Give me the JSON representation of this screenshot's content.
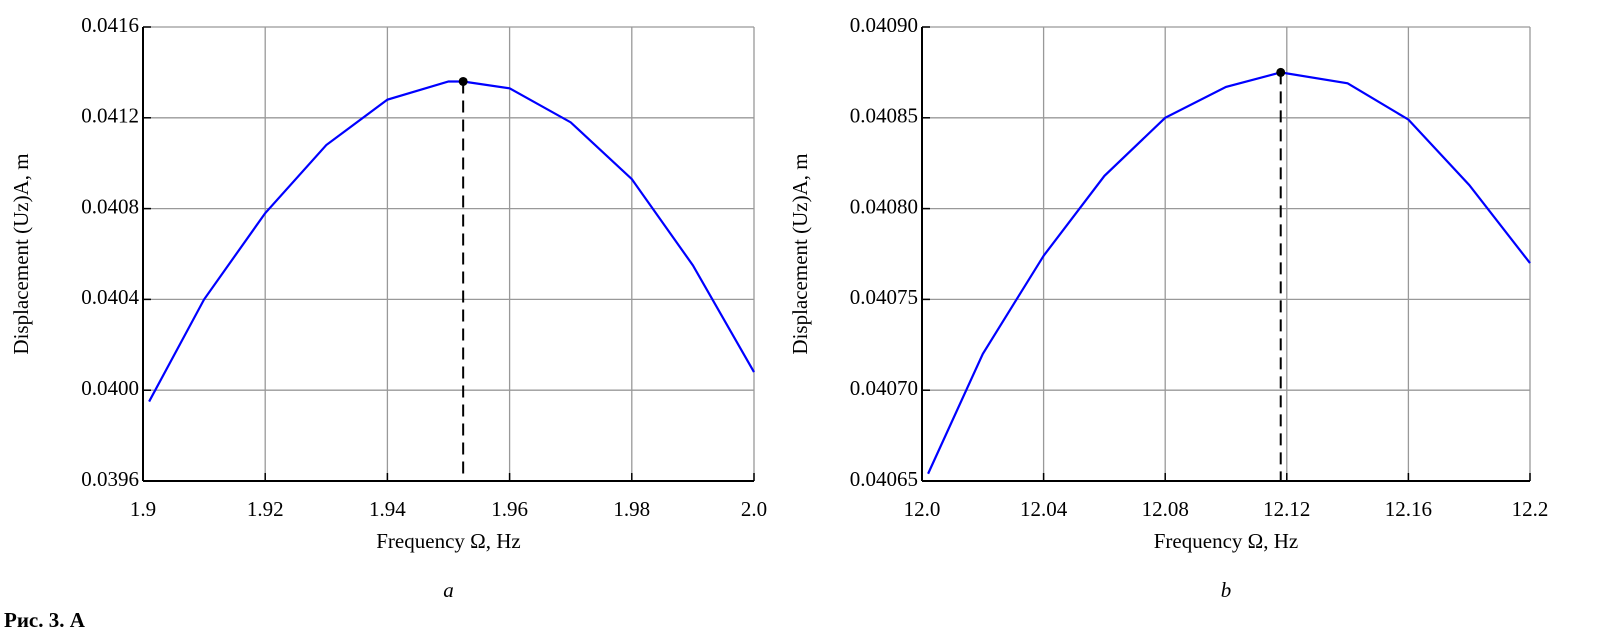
{
  "chart_data": [
    {
      "type": "line",
      "panel_label": "a",
      "xlabel": "Frequency Ω, Hz",
      "ylabel": "Displacement (Uz)A, m",
      "x": [
        1.901,
        1.91,
        1.92,
        1.93,
        1.94,
        1.95,
        1.9524,
        1.96,
        1.97,
        1.98,
        1.99,
        2.0
      ],
      "series": [
        {
          "color": "#0000ff",
          "values": [
            0.03995,
            0.0404,
            0.04078,
            0.04108,
            0.04128,
            0.04136,
            0.04136,
            0.04133,
            0.04118,
            0.04093,
            0.04055,
            0.04008
          ]
        }
      ],
      "peak": {
        "x": 1.9524,
        "y": 0.04136,
        "color": "#000000"
      },
      "xlim": [
        1.9,
        2.0
      ],
      "xticks": [
        1.9,
        1.92,
        1.94,
        1.96,
        1.98,
        {
          "value": 2.0,
          "label": "2.0"
        }
      ],
      "ylim": [
        0.0396,
        0.0416
      ],
      "yticks": [
        0.0396,
        {
          "value": 0.04,
          "label": "0.0400"
        },
        0.0404,
        0.0408,
        0.0412,
        0.0416
      ],
      "grid": true
    },
    {
      "type": "line",
      "panel_label": "b",
      "xlabel": "Frequency Ω, Hz",
      "ylabel": "Displacement (Uz)A, m",
      "x": [
        12.002,
        12.02,
        12.04,
        12.06,
        12.08,
        12.1,
        12.118,
        12.14,
        12.16,
        12.18,
        12.2
      ],
      "series": [
        {
          "color": "#0000ff",
          "values": [
            0.040654,
            0.04072,
            0.040774,
            0.040818,
            0.04085,
            0.040867,
            0.040875,
            0.040869,
            0.040849,
            0.040813,
            0.04077
          ]
        }
      ],
      "peak": {
        "x": 12.118,
        "y": 0.040875,
        "color": "#000000"
      },
      "xlim": [
        12.0,
        12.2
      ],
      "xticks": [
        {
          "value": 12.0,
          "label": "12.0"
        },
        12.04,
        12.08,
        12.12,
        12.16,
        12.2
      ],
      "ylim": [
        0.04065,
        0.0409
      ],
      "yticks": [
        0.04065,
        {
          "value": 0.0407,
          "label": "0.04070"
        },
        0.04075,
        {
          "value": 0.0408,
          "label": "0.04080"
        },
        0.04085,
        {
          "value": 0.0409,
          "label": "0.04090"
        }
      ],
      "grid": true
    }
  ],
  "caption": "Рис. 3. А"
}
